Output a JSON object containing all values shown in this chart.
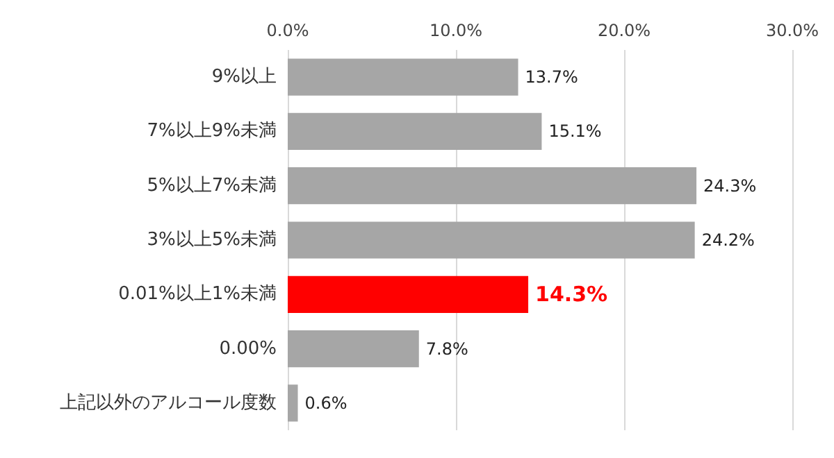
{
  "chart_data": {
    "type": "bar",
    "orientation": "horizontal",
    "categories": [
      "9%以上",
      "7%以上9%未満",
      "5%以上7%未満",
      "3%以上5%未満",
      "0.01%以上1%未満",
      "0.00%",
      "上記以外のアルコール度数"
    ],
    "values": [
      13.7,
      15.1,
      24.3,
      24.2,
      14.3,
      7.8,
      0.6
    ],
    "colors": [
      "#a6a6a6",
      "#a6a6a6",
      "#a6a6a6",
      "#a6a6a6",
      "#ff0000",
      "#a6a6a6",
      "#a6a6a6"
    ],
    "value_labels": [
      "13.7%",
      "15.1%",
      "24.3%",
      "24.2%",
      "14.3%",
      "7.8%",
      "0.6%"
    ],
    "xlim": [
      0,
      30
    ],
    "xticks": [
      {
        "value": 0,
        "label": "0.0%"
      },
      {
        "value": 10,
        "label": "10.0%"
      },
      {
        "value": 20,
        "label": "20.0%"
      },
      {
        "value": 30,
        "label": "30.0%"
      }
    ],
    "grid": "x"
  }
}
